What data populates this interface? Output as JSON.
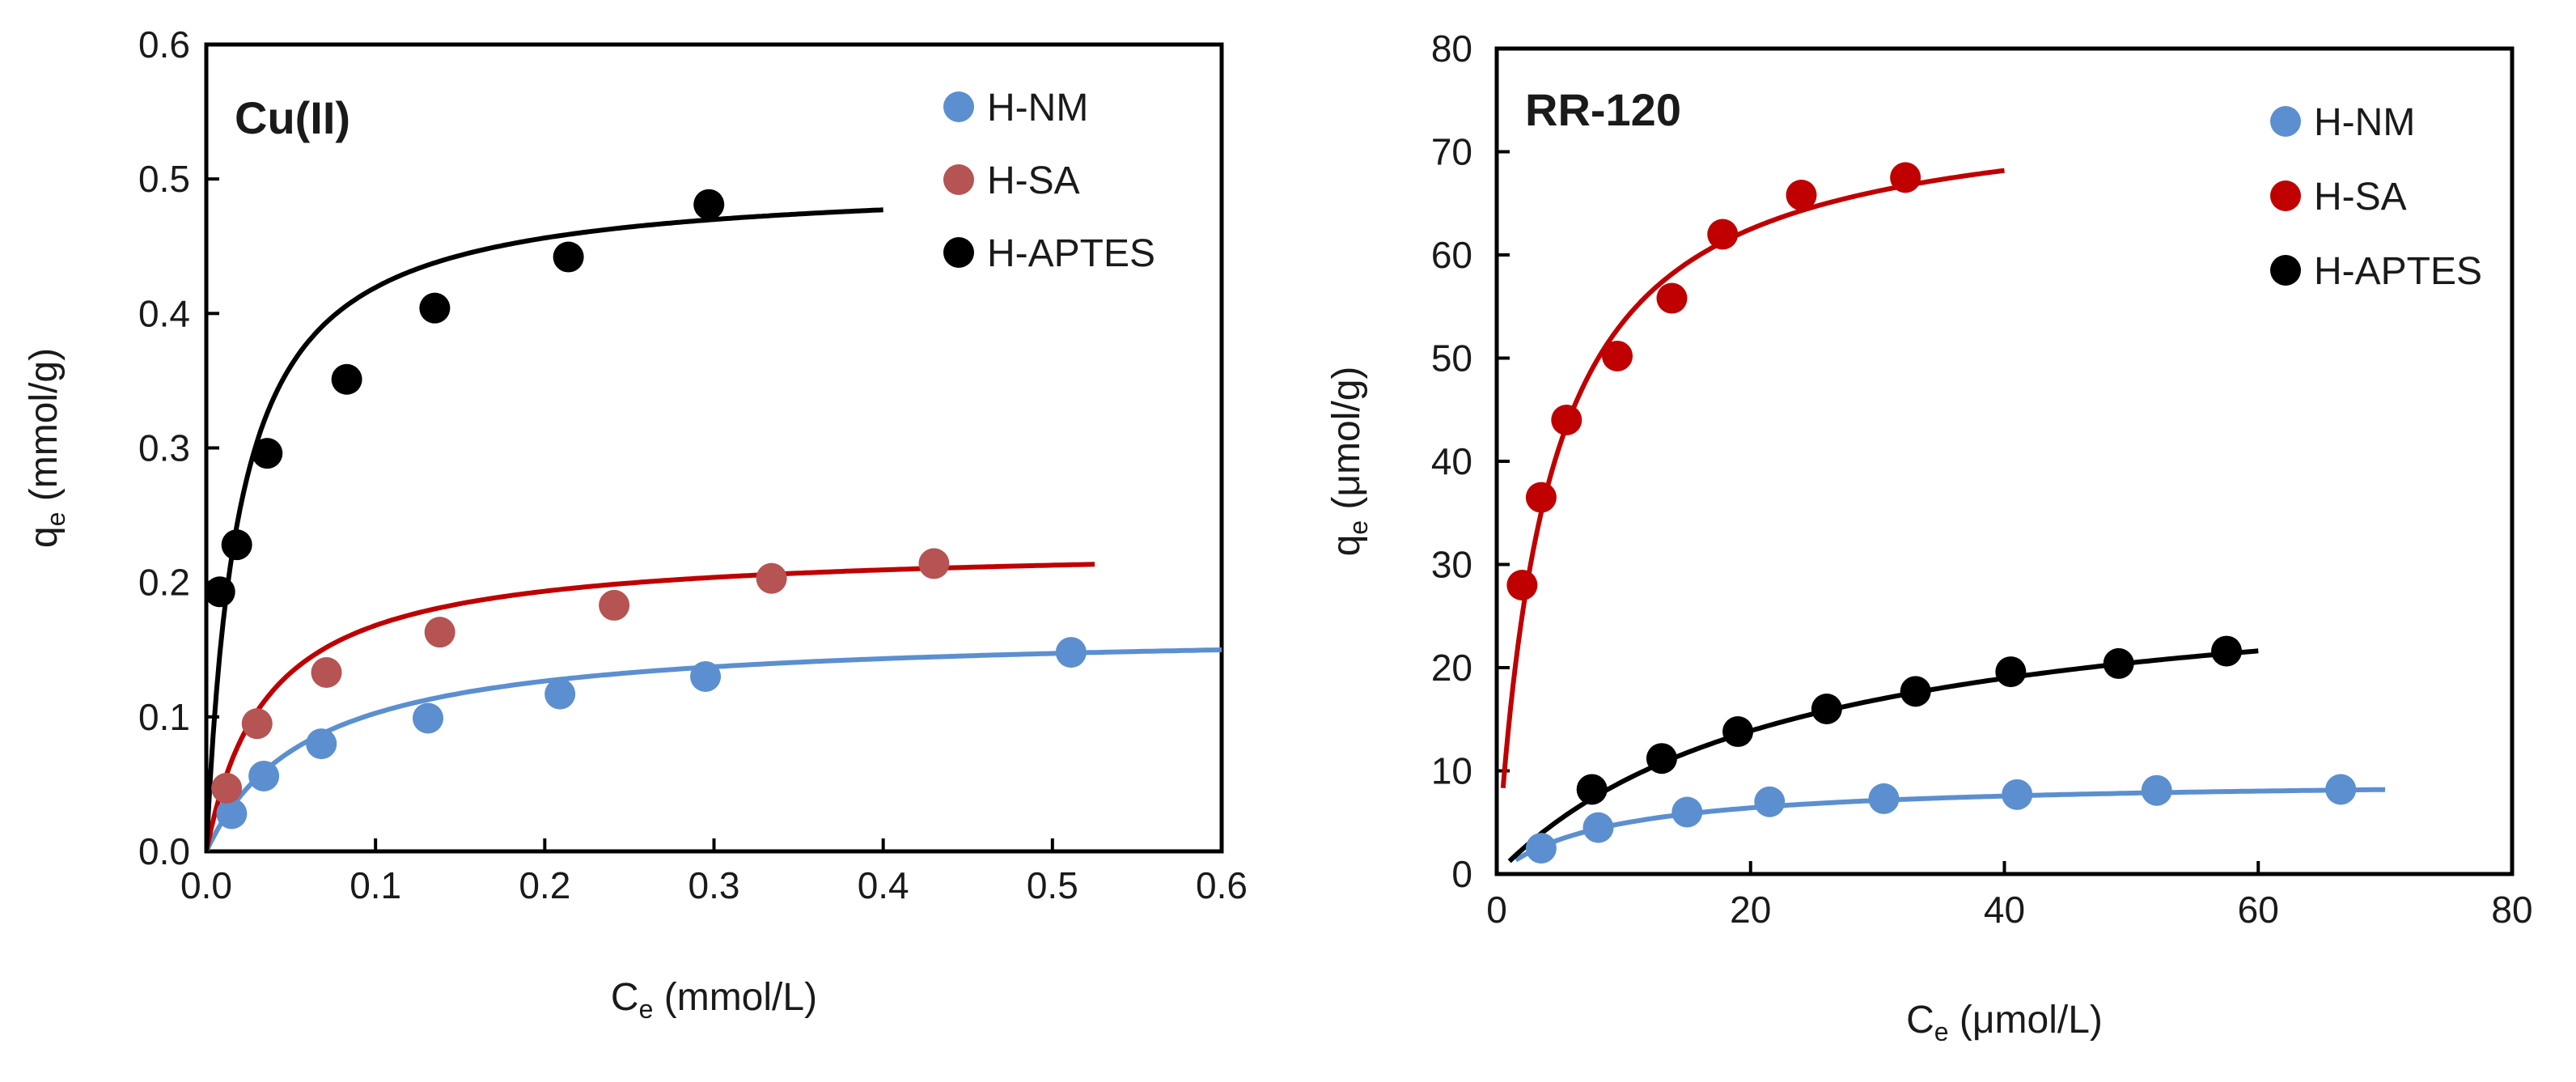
{
  "chart_data": [
    {
      "type": "scatter",
      "panel_label": "Cu(II)",
      "xlabel": "C",
      "xlabel_sub": "e",
      "xlabel_unit": " (mmol/L)",
      "ylabel": "q",
      "ylabel_sub": "e",
      "ylabel_unit": " (mmol/g)",
      "xlim": [
        0,
        0.6
      ],
      "ylim": [
        0,
        0.6
      ],
      "xticks": [
        "0.0",
        "0.1",
        "0.2",
        "0.3",
        "0.4",
        "0.5",
        "0.6"
      ],
      "yticks": [
        "0.0",
        "0.1",
        "0.2",
        "0.3",
        "0.4",
        "0.5",
        "0.6"
      ],
      "legend": "top-right",
      "series": [
        {
          "name": "H-NM",
          "color": "#5b8fd0",
          "line_color": "#5b8fd0",
          "points": [
            [
              0.015,
              0.028
            ],
            [
              0.034,
              0.056
            ],
            [
              0.068,
              0.08
            ],
            [
              0.131,
              0.099
            ],
            [
              0.209,
              0.117
            ],
            [
              0.295,
              0.13
            ],
            [
              0.511,
              0.148
            ]
          ],
          "fit": {
            "model": "langmuir",
            "qmax": 0.165,
            "K": 16.5,
            "xmin": 0,
            "xmax": 0.6
          }
        },
        {
          "name": "H-SA",
          "color": "#b65353",
          "line_color": "#c00000",
          "points": [
            [
              0.012,
              0.047
            ],
            [
              0.03,
              0.095
            ],
            [
              0.071,
              0.133
            ],
            [
              0.138,
              0.163
            ],
            [
              0.241,
              0.183
            ],
            [
              0.334,
              0.203
            ],
            [
              0.43,
              0.214
            ]
          ],
          "fit": {
            "model": "langmuir",
            "qmax": 0.228,
            "K": 28,
            "xmin": 0,
            "xmax": 0.525
          }
        },
        {
          "name": "H-APTES",
          "color": "#000000",
          "line_color": "#000000",
          "points": [
            [
              0.008,
              0.193
            ],
            [
              0.018,
              0.228
            ],
            [
              0.036,
              0.296
            ],
            [
              0.083,
              0.351
            ],
            [
              0.135,
              0.404
            ],
            [
              0.214,
              0.442
            ],
            [
              0.297,
              0.481
            ]
          ],
          "fit": {
            "model": "langmuir",
            "qmax": 0.5,
            "K": 52,
            "xmin": 0,
            "xmax": 0.4
          }
        }
      ]
    },
    {
      "type": "scatter",
      "panel_label": "RR-120",
      "xlabel": "C",
      "xlabel_sub": "e",
      "xlabel_unit": " (μmol/L)",
      "ylabel": "q",
      "ylabel_sub": "e",
      "ylabel_unit": " (μmol/g)",
      "xlim": [
        0,
        80
      ],
      "ylim": [
        0,
        80
      ],
      "xticks": [
        "0",
        "20",
        "40",
        "60",
        "80"
      ],
      "yticks": [
        "0",
        "10",
        "20",
        "30",
        "40",
        "50",
        "60",
        "70",
        "80"
      ],
      "legend": "top-right",
      "series": [
        {
          "name": "H-NM",
          "color": "#5b8fd0",
          "line_color": "#5b8fd0",
          "points": [
            [
              3.5,
              2.5
            ],
            [
              8,
              4.5
            ],
            [
              15,
              6
            ],
            [
              21.5,
              7
            ],
            [
              30.5,
              7.3
            ],
            [
              41,
              7.7
            ],
            [
              52,
              8.1
            ],
            [
              66.5,
              8.2
            ]
          ],
          "fit": {
            "model": "langmuir",
            "qmax": 9.2,
            "K": 0.115,
            "xmin": 1.5,
            "xmax": 70
          }
        },
        {
          "name": "H-SA",
          "color": "#c00000",
          "line_color": "#c00000",
          "points": [
            [
              2,
              28
            ],
            [
              3.5,
              36.5
            ],
            [
              5.5,
              44
            ],
            [
              9.5,
              50.2
            ],
            [
              13.8,
              55.8
            ],
            [
              17.8,
              62
            ],
            [
              24,
              65.8
            ],
            [
              32.2,
              67.5
            ]
          ],
          "fit": {
            "model": "langmuir",
            "qmax": 75,
            "K": 0.25,
            "xmin": 0.5,
            "xmax": 40
          }
        },
        {
          "name": "H-APTES",
          "color": "#000000",
          "line_color": "#000000",
          "points": [
            [
              7.5,
              8.2
            ],
            [
              13,
              11.2
            ],
            [
              19,
              13.8
            ],
            [
              26,
              16
            ],
            [
              33,
              17.7
            ],
            [
              40.5,
              19.6
            ],
            [
              49,
              20.4
            ],
            [
              57.5,
              21.6
            ]
          ],
          "fit": {
            "model": "langmuir",
            "qmax": 30,
            "K": 0.043,
            "xmin": 1,
            "xmax": 60
          }
        }
      ]
    }
  ]
}
